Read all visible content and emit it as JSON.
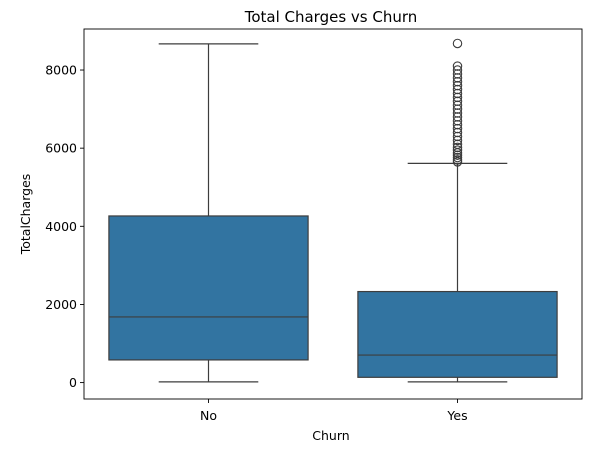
{
  "chart_data": {
    "type": "box",
    "title": "Total Charges vs Churn",
    "xlabel": "Churn",
    "ylabel": "TotalCharges",
    "ylim": [
      -420,
      9050
    ],
    "yticks": [
      0,
      2000,
      4000,
      6000,
      8000
    ],
    "categories": [
      "No",
      "Yes"
    ],
    "color": "#3274a1",
    "line_color": "#3d3d3d",
    "boxes": [
      {
        "category": "No",
        "whisker_low": 19,
        "q1": 580,
        "median": 1680,
        "q3": 4265,
        "whisker_high": 8670,
        "outliers": []
      },
      {
        "category": "Yes",
        "whisker_low": 19,
        "q1": 135,
        "median": 705,
        "q3": 2330,
        "whisker_high": 5610,
        "outliers": [
          5650,
          5700,
          5760,
          5820,
          5880,
          5950,
          6020,
          6100,
          6200,
          6300,
          6400,
          6500,
          6600,
          6700,
          6800,
          6900,
          7000,
          7100,
          7200,
          7300,
          7400,
          7500,
          7600,
          7700,
          7800,
          7900,
          8000,
          8100,
          8680
        ]
      }
    ]
  }
}
